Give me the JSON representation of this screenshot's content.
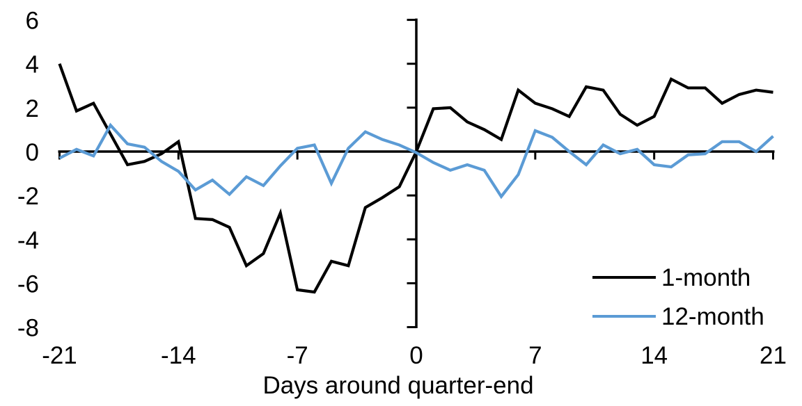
{
  "chart_data": {
    "type": "line",
    "title": "",
    "xlabel": "Days around quarter-end",
    "ylabel": "",
    "grid": false,
    "legend_position": "inside-lower-right",
    "xlim": [
      -21,
      21
    ],
    "ylim": [
      -8,
      6
    ],
    "x_ticks": [
      -21,
      -14,
      -7,
      0,
      7,
      14,
      21
    ],
    "y_ticks": [
      6,
      4,
      2,
      0,
      -2,
      -4,
      -6,
      -8
    ],
    "x": [
      -21,
      -20,
      -19,
      -18,
      -17,
      -16,
      -15,
      -14,
      -13,
      -12,
      -11,
      -10,
      -9,
      -8,
      -7,
      -6,
      -5,
      -4,
      -3,
      -2,
      -1,
      0,
      1,
      2,
      3,
      4,
      5,
      6,
      7,
      8,
      9,
      10,
      11,
      12,
      13,
      14,
      15,
      16,
      17,
      18,
      19,
      20,
      21
    ],
    "series": [
      {
        "name": "1-month",
        "color": "#000000",
        "values": [
          4.0,
          1.85,
          2.2,
          0.8,
          -0.6,
          -0.45,
          -0.1,
          0.45,
          -3.05,
          -3.1,
          -3.45,
          -5.2,
          -4.65,
          -2.8,
          -6.3,
          -6.4,
          -5.0,
          -5.2,
          -2.55,
          -2.1,
          -1.6,
          0.0,
          1.95,
          2.0,
          1.35,
          1.0,
          0.55,
          2.8,
          2.2,
          1.95,
          1.6,
          2.95,
          2.8,
          1.7,
          1.2,
          1.6,
          3.3,
          2.9,
          2.9,
          2.2,
          2.6,
          2.8,
          2.7
        ]
      },
      {
        "name": "12-month",
        "color": "#5B9BD5",
        "values": [
          -0.3,
          0.1,
          -0.2,
          1.2,
          0.35,
          0.2,
          -0.45,
          -0.9,
          -1.75,
          -1.3,
          -1.95,
          -1.15,
          -1.55,
          -0.65,
          0.15,
          0.3,
          -1.45,
          0.15,
          0.9,
          0.55,
          0.3,
          -0.05,
          -0.5,
          -0.85,
          -0.6,
          -0.85,
          -2.05,
          -1.05,
          0.95,
          0.65,
          0.0,
          -0.6,
          0.3,
          -0.1,
          0.1,
          -0.6,
          -0.7,
          -0.15,
          -0.1,
          0.45,
          0.45,
          0.0,
          0.7
        ]
      }
    ]
  }
}
